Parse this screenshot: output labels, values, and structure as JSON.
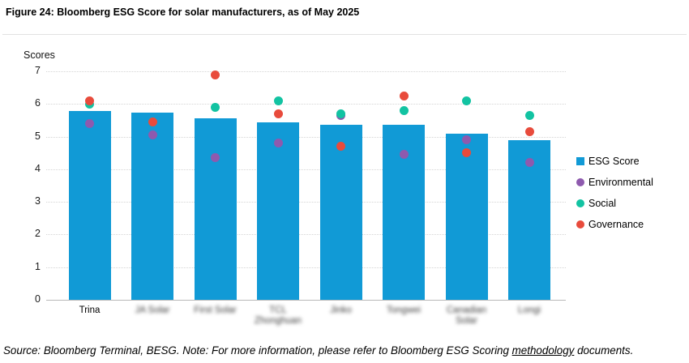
{
  "title": "Figure 24: Bloomberg ESG Score for solar manufacturers, as of May 2025",
  "footer": {
    "text_before": "Source: Bloomberg Terminal, BESG. Note: For more information, please refer to Bloomberg ESG Scoring ",
    "link_text": "methodology",
    "text_after": " documents."
  },
  "chart_data": {
    "type": "bar",
    "ylabel": "Scores",
    "ylim": [
      0,
      7
    ],
    "ytick_step": 1,
    "grid": "horizontal-dotted",
    "legend_position": "right",
    "categories": [
      "Trina",
      "JA Solar",
      "First Solar",
      "TCL Zhonghuan",
      "Jinko",
      "Tongwei",
      "Canadian Solar",
      "Longi"
    ],
    "category_label_lines": [
      [
        "Trina"
      ],
      [
        "JA Solar"
      ],
      [
        "First Solar"
      ],
      [
        "TCL",
        "Zhonghuan"
      ],
      [
        "Jinko"
      ],
      [
        "Tongwei"
      ],
      [
        "Canadian",
        "Solar"
      ],
      [
        "Longi"
      ]
    ],
    "category_label_blurred": [
      false,
      true,
      true,
      true,
      true,
      true,
      true,
      true
    ],
    "series": [
      {
        "name": "ESG Score",
        "type": "bar",
        "color": "#119ad6",
        "values": [
          5.78,
          5.73,
          5.55,
          5.43,
          5.37,
          5.35,
          5.1,
          4.9
        ]
      },
      {
        "name": "Environmental",
        "type": "scatter",
        "color": "#8e5aae",
        "values": [
          5.4,
          5.05,
          4.35,
          4.8,
          5.65,
          4.45,
          4.9,
          4.2
        ]
      },
      {
        "name": "Social",
        "type": "scatter",
        "color": "#12c3a2",
        "values": [
          6.0,
          5.45,
          5.9,
          6.1,
          5.7,
          5.8,
          6.1,
          5.65
        ]
      },
      {
        "name": "Governance",
        "type": "scatter",
        "color": "#e84b3c",
        "values": [
          6.1,
          5.45,
          6.9,
          5.7,
          4.7,
          6.25,
          4.5,
          5.15
        ]
      }
    ],
    "colors": {
      "bar": "#119ad6",
      "environmental": "#8e5aae",
      "social": "#12c3a2",
      "governance": "#e84b3c",
      "gridline": "#d5d5d5"
    }
  }
}
